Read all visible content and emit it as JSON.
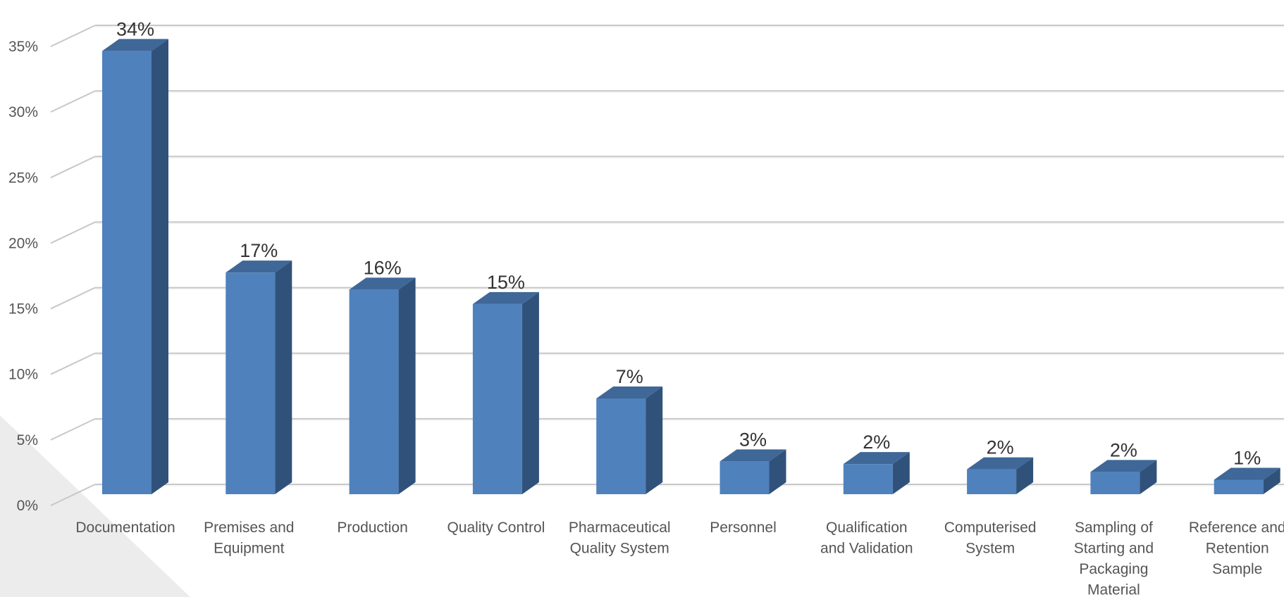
{
  "chart_data": {
    "type": "bar",
    "style": "3d-column",
    "categories": [
      [
        "Documentation"
      ],
      [
        "Premises and",
        "Equipment"
      ],
      [
        "Production"
      ],
      [
        "Quality Control"
      ],
      [
        "Pharmaceutical",
        "Quality System"
      ],
      [
        "Personnel"
      ],
      [
        "Qualification",
        "and Validation"
      ],
      [
        "Computerised",
        "System"
      ],
      [
        "Sampling of",
        "Starting and",
        "Packaging",
        "Material"
      ],
      [
        "Reference and",
        "Retention",
        "Sample"
      ]
    ],
    "values": [
      34,
      17,
      16,
      15,
      7,
      3,
      2,
      2,
      2,
      1
    ],
    "value_heights": [
      33.8,
      16.9,
      15.6,
      14.5,
      7.3,
      2.5,
      2.3,
      1.9,
      1.7,
      1.1
    ],
    "data_labels": [
      "34%",
      "17%",
      "16%",
      "15%",
      "7%",
      "3%",
      "2%",
      "2%",
      "2%",
      "1%"
    ],
    "y_ticks": [
      "0%",
      "5%",
      "10%",
      "15%",
      "20%",
      "25%",
      "30%",
      "35%"
    ],
    "ylim": [
      0,
      35
    ],
    "grid": true,
    "legend": "none",
    "colors": {
      "front": "#4f81bd",
      "side": "#30527a",
      "top": "#3f6797",
      "grid": "#d0d0d0",
      "floor": "#e8e8e8"
    }
  }
}
